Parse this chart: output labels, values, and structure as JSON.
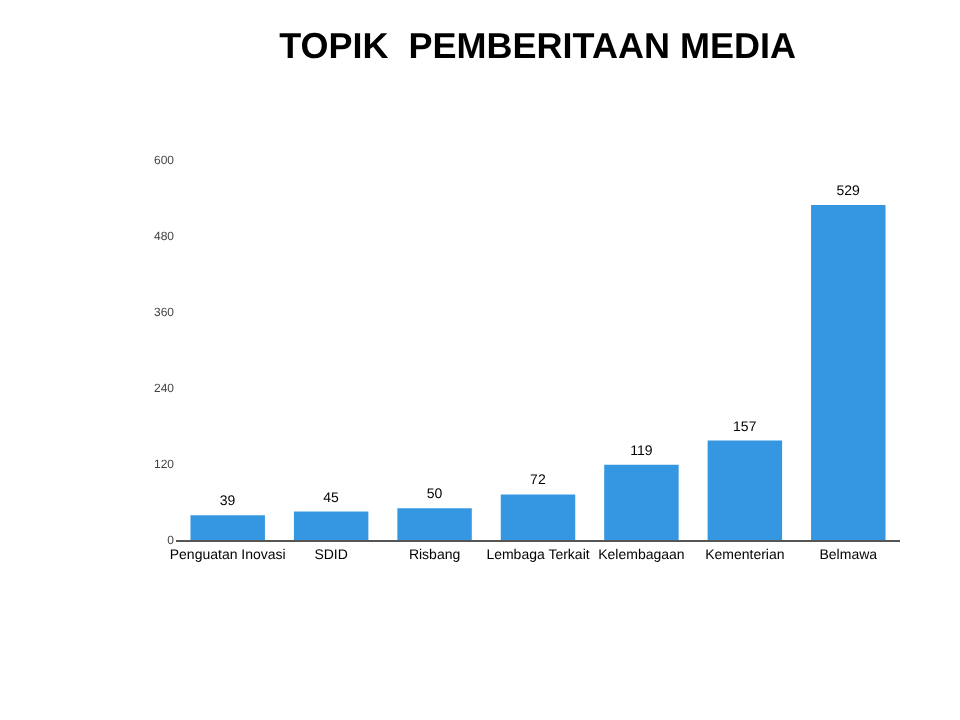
{
  "chart_data": {
    "type": "bar",
    "title": "TOPIK  PEMBERITAAN MEDIA",
    "categories": [
      "Penguatan Inovasi",
      "SDID",
      "Risbang",
      "Lembaga Terkait",
      "Kelembagaan",
      "Kementerian",
      "Belmawa"
    ],
    "values": [
      39,
      45,
      50,
      72,
      119,
      157,
      529
    ],
    "color": "#3597e2",
    "ylim": [
      0,
      600
    ],
    "yticks": [
      0,
      120,
      240,
      360,
      480,
      600
    ],
    "data_labels": true
  }
}
